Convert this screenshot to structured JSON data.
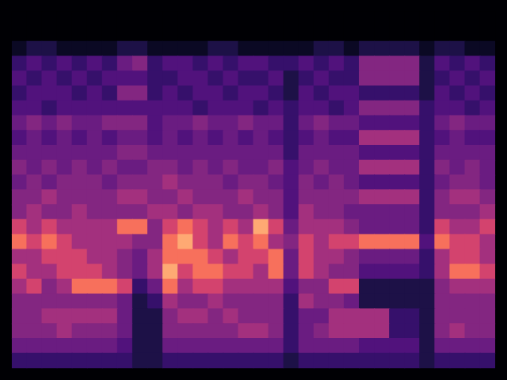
{
  "chart_data": {
    "type": "heatmap",
    "tick_labels": false,
    "grid": false,
    "cells": [
      [
        0,
        0,
        0,
        0,
        0,
        0,
        0,
        0,
        0,
        0,
        0,
        0,
        0,
        0,
        0,
        0,
        0,
        0,
        0,
        0,
        0,
        0,
        0,
        0,
        0,
        0,
        0,
        0,
        0,
        0,
        0,
        0
      ],
      [
        0,
        0,
        0,
        0,
        0,
        0,
        0,
        0,
        0,
        0,
        0,
        0,
        0,
        0,
        0,
        0,
        0,
        0,
        0,
        0,
        0,
        0,
        0,
        0,
        0,
        0,
        0,
        0,
        0,
        0,
        0,
        0
      ],
      [
        1,
        2,
        2,
        1,
        1,
        1,
        1,
        2,
        2,
        1,
        1,
        1,
        1,
        2,
        2,
        1,
        1,
        1,
        1,
        1,
        2,
        2,
        1,
        2,
        2,
        2,
        2,
        1,
        2,
        2,
        1,
        1
      ],
      [
        3,
        4,
        3,
        4,
        3,
        4,
        3,
        5,
        6,
        3,
        4,
        4,
        3,
        4,
        3,
        4,
        4,
        3,
        3,
        4,
        3,
        4,
        3,
        6,
        6,
        6,
        6,
        2,
        4,
        3,
        4,
        3
      ],
      [
        4,
        3,
        4,
        3,
        4,
        3,
        4,
        4,
        4,
        3,
        3,
        4,
        4,
        3,
        4,
        3,
        3,
        4,
        2,
        3,
        4,
        3,
        3,
        6,
        6,
        6,
        6,
        2,
        3,
        4,
        3,
        4
      ],
      [
        3,
        4,
        4,
        4,
        3,
        4,
        3,
        6,
        6,
        3,
        4,
        3,
        4,
        4,
        3,
        4,
        4,
        3,
        2,
        4,
        3,
        4,
        4,
        3,
        3,
        3,
        3,
        2,
        4,
        3,
        4,
        3
      ],
      [
        4,
        4,
        3,
        4,
        4,
        4,
        4,
        4,
        4,
        4,
        4,
        4,
        3,
        4,
        4,
        4,
        3,
        4,
        3,
        4,
        4,
        3,
        4,
        6,
        6,
        6,
        6,
        3,
        4,
        4,
        3,
        4
      ],
      [
        5,
        6,
        5,
        6,
        5,
        5,
        6,
        6,
        6,
        4,
        5,
        5,
        6,
        5,
        5,
        6,
        5,
        5,
        3,
        5,
        6,
        5,
        5,
        4,
        4,
        4,
        4,
        3,
        5,
        6,
        5,
        5
      ],
      [
        4,
        5,
        4,
        5,
        4,
        5,
        4,
        5,
        5,
        4,
        5,
        4,
        5,
        4,
        5,
        4,
        5,
        4,
        3,
        4,
        5,
        4,
        4,
        7,
        7,
        7,
        7,
        3,
        4,
        5,
        4,
        4
      ],
      [
        5,
        5,
        5,
        5,
        5,
        5,
        5,
        6,
        6,
        5,
        5,
        5,
        5,
        5,
        5,
        5,
        5,
        5,
        3,
        5,
        5,
        5,
        5,
        4,
        4,
        4,
        4,
        3,
        5,
        5,
        5,
        5
      ],
      [
        6,
        5,
        6,
        5,
        6,
        5,
        6,
        5,
        5,
        6,
        6,
        5,
        6,
        5,
        6,
        5,
        5,
        6,
        4,
        5,
        6,
        5,
        5,
        7,
        7,
        7,
        7,
        3,
        6,
        5,
        6,
        5
      ],
      [
        5,
        6,
        5,
        6,
        6,
        6,
        5,
        6,
        6,
        6,
        7,
        6,
        6,
        6,
        5,
        6,
        6,
        5,
        4,
        6,
        5,
        6,
        5,
        4,
        4,
        4,
        4,
        3,
        5,
        6,
        6,
        5
      ],
      [
        6,
        6,
        7,
        6,
        6,
        6,
        6,
        7,
        7,
        6,
        6,
        7,
        6,
        6,
        6,
        7,
        6,
        6,
        4,
        6,
        6,
        6,
        6,
        7,
        7,
        7,
        7,
        3,
        6,
        7,
        7,
        6
      ],
      [
        6,
        7,
        6,
        6,
        7,
        6,
        6,
        6,
        6,
        7,
        7,
        6,
        7,
        7,
        6,
        6,
        7,
        6,
        4,
        7,
        6,
        6,
        5,
        5,
        5,
        5,
        5,
        3,
        6,
        6,
        6,
        7
      ],
      [
        8,
        7,
        8,
        7,
        7,
        7,
        7,
        9,
        9,
        6,
        8,
        9,
        8,
        7,
        8,
        7,
        10,
        8,
        5,
        7,
        7,
        7,
        6,
        5,
        5,
        5,
        5,
        3,
        8,
        7,
        7,
        8
      ],
      [
        9,
        8,
        9,
        8,
        7,
        7,
        7,
        7,
        6,
        6,
        9,
        10,
        8,
        7,
        9,
        8,
        9,
        7,
        6,
        8,
        7,
        8,
        8,
        9,
        9,
        9,
        9,
        4,
        9,
        8,
        8,
        7
      ],
      [
        7,
        7,
        8,
        8,
        8,
        7,
        7,
        6,
        5,
        7,
        9,
        9,
        9,
        8,
        7,
        8,
        8,
        9,
        5,
        8,
        7,
        7,
        6,
        5,
        5,
        5,
        5,
        3,
        7,
        8,
        8,
        7
      ],
      [
        8,
        7,
        7,
        8,
        8,
        8,
        7,
        6,
        5,
        7,
        10,
        8,
        9,
        9,
        8,
        8,
        7,
        9,
        5,
        8,
        7,
        6,
        6,
        4,
        4,
        4,
        4,
        3,
        7,
        9,
        9,
        8
      ],
      [
        7,
        8,
        6,
        7,
        9,
        9,
        9,
        8,
        3,
        5,
        9,
        7,
        8,
        8,
        7,
        7,
        7,
        7,
        4,
        6,
        6,
        8,
        8,
        2,
        2,
        2,
        2,
        2,
        6,
        7,
        7,
        7
      ],
      [
        6,
        6,
        6,
        6,
        6,
        6,
        6,
        5,
        2,
        3,
        7,
        6,
        6,
        7,
        6,
        6,
        6,
        6,
        3,
        7,
        6,
        6,
        5,
        2,
        2,
        2,
        2,
        2,
        6,
        6,
        6,
        6
      ],
      [
        6,
        6,
        7,
        7,
        7,
        7,
        7,
        5,
        2,
        2,
        6,
        7,
        7,
        6,
        7,
        6,
        6,
        6,
        3,
        5,
        5,
        7,
        7,
        7,
        7,
        3,
        3,
        2,
        6,
        6,
        6,
        6
      ],
      [
        6,
        6,
        6,
        7,
        6,
        6,
        6,
        5,
        2,
        2,
        6,
        6,
        6,
        6,
        6,
        7,
        7,
        6,
        3,
        5,
        6,
        7,
        7,
        7,
        7,
        3,
        3,
        2,
        6,
        7,
        6,
        6
      ],
      [
        5,
        5,
        5,
        5,
        5,
        5,
        5,
        4,
        2,
        2,
        5,
        5,
        5,
        5,
        5,
        5,
        5,
        5,
        3,
        5,
        5,
        5,
        5,
        4,
        4,
        4,
        4,
        2,
        5,
        5,
        5,
        5
      ],
      [
        3,
        3,
        3,
        3,
        3,
        3,
        3,
        3,
        2,
        2,
        3,
        3,
        3,
        3,
        3,
        3,
        3,
        3,
        2,
        3,
        3,
        3,
        3,
        3,
        3,
        3,
        3,
        2,
        3,
        3,
        3,
        3
      ]
    ]
  }
}
